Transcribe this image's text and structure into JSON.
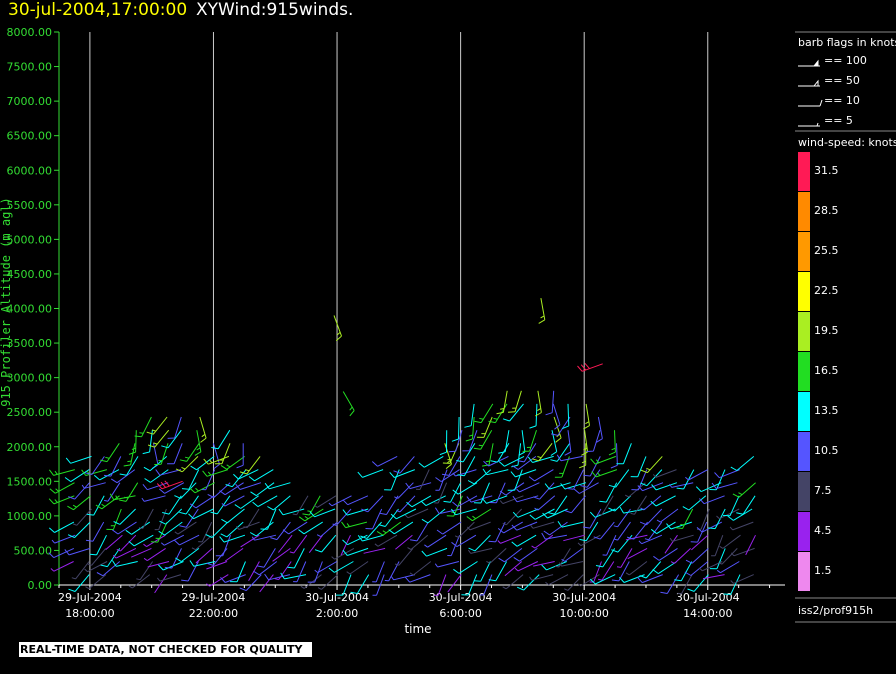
{
  "header": {
    "date": "30-jul-2004,17:00:00",
    "title": "XYWind:915winds."
  },
  "chart_data": {
    "type": "wind-profile-barbs",
    "ylabel": "915 Profiler Altitude (m agl)",
    "xlabel": "time",
    "ylim": [
      0,
      8000
    ],
    "y_ticks": [
      "0.00",
      "500.00",
      "1000.00",
      "1500.00",
      "2000.00",
      "2500.00",
      "3000.00",
      "3500.00",
      "4000.00",
      "4500.00",
      "5000.00",
      "5500.00",
      "6000.00",
      "6500.00",
      "7000.00",
      "7500.00",
      "8000.00"
    ],
    "x_ticks": [
      {
        "date": "29-Jul-2004",
        "time": "18:00:00"
      },
      {
        "date": "29-Jul-2004",
        "time": "22:00:00"
      },
      {
        "date": "30-Jul-2004",
        "time": "2:00:00"
      },
      {
        "date": "30-Jul-2004",
        "time": "6:00:00"
      },
      {
        "date": "30-Jul-2004",
        "time": "10:00:00"
      },
      {
        "date": "30-Jul-2004",
        "time": "14:00:00"
      }
    ],
    "x_range_hours": [
      -1.0,
      22.5
    ],
    "grid": "vertical lines at x ticks",
    "barb_legend": {
      "title": "barb flags in knots",
      "items": [
        "== 100",
        "== 50",
        "== 10",
        "== 5"
      ]
    },
    "colorbar": {
      "title": "wind-speed: knots",
      "labels": [
        "31.5",
        "28.5",
        "25.5",
        "22.5",
        "19.5",
        "16.5",
        "13.5",
        "10.5",
        "7.5",
        "4.5",
        "1.5"
      ],
      "colors": [
        "#ff1a55",
        "#ff8a00",
        "#ff9900",
        "#ffff00",
        "#aaee22",
        "#22dd22",
        "#00ffff",
        "#5555ff",
        "#444466",
        "#9922ee",
        "#ee88ee"
      ]
    },
    "source": "iss2/prof915h",
    "note": "REAL-TIME DATA, NOT CHECKED FOR QUALITY"
  }
}
